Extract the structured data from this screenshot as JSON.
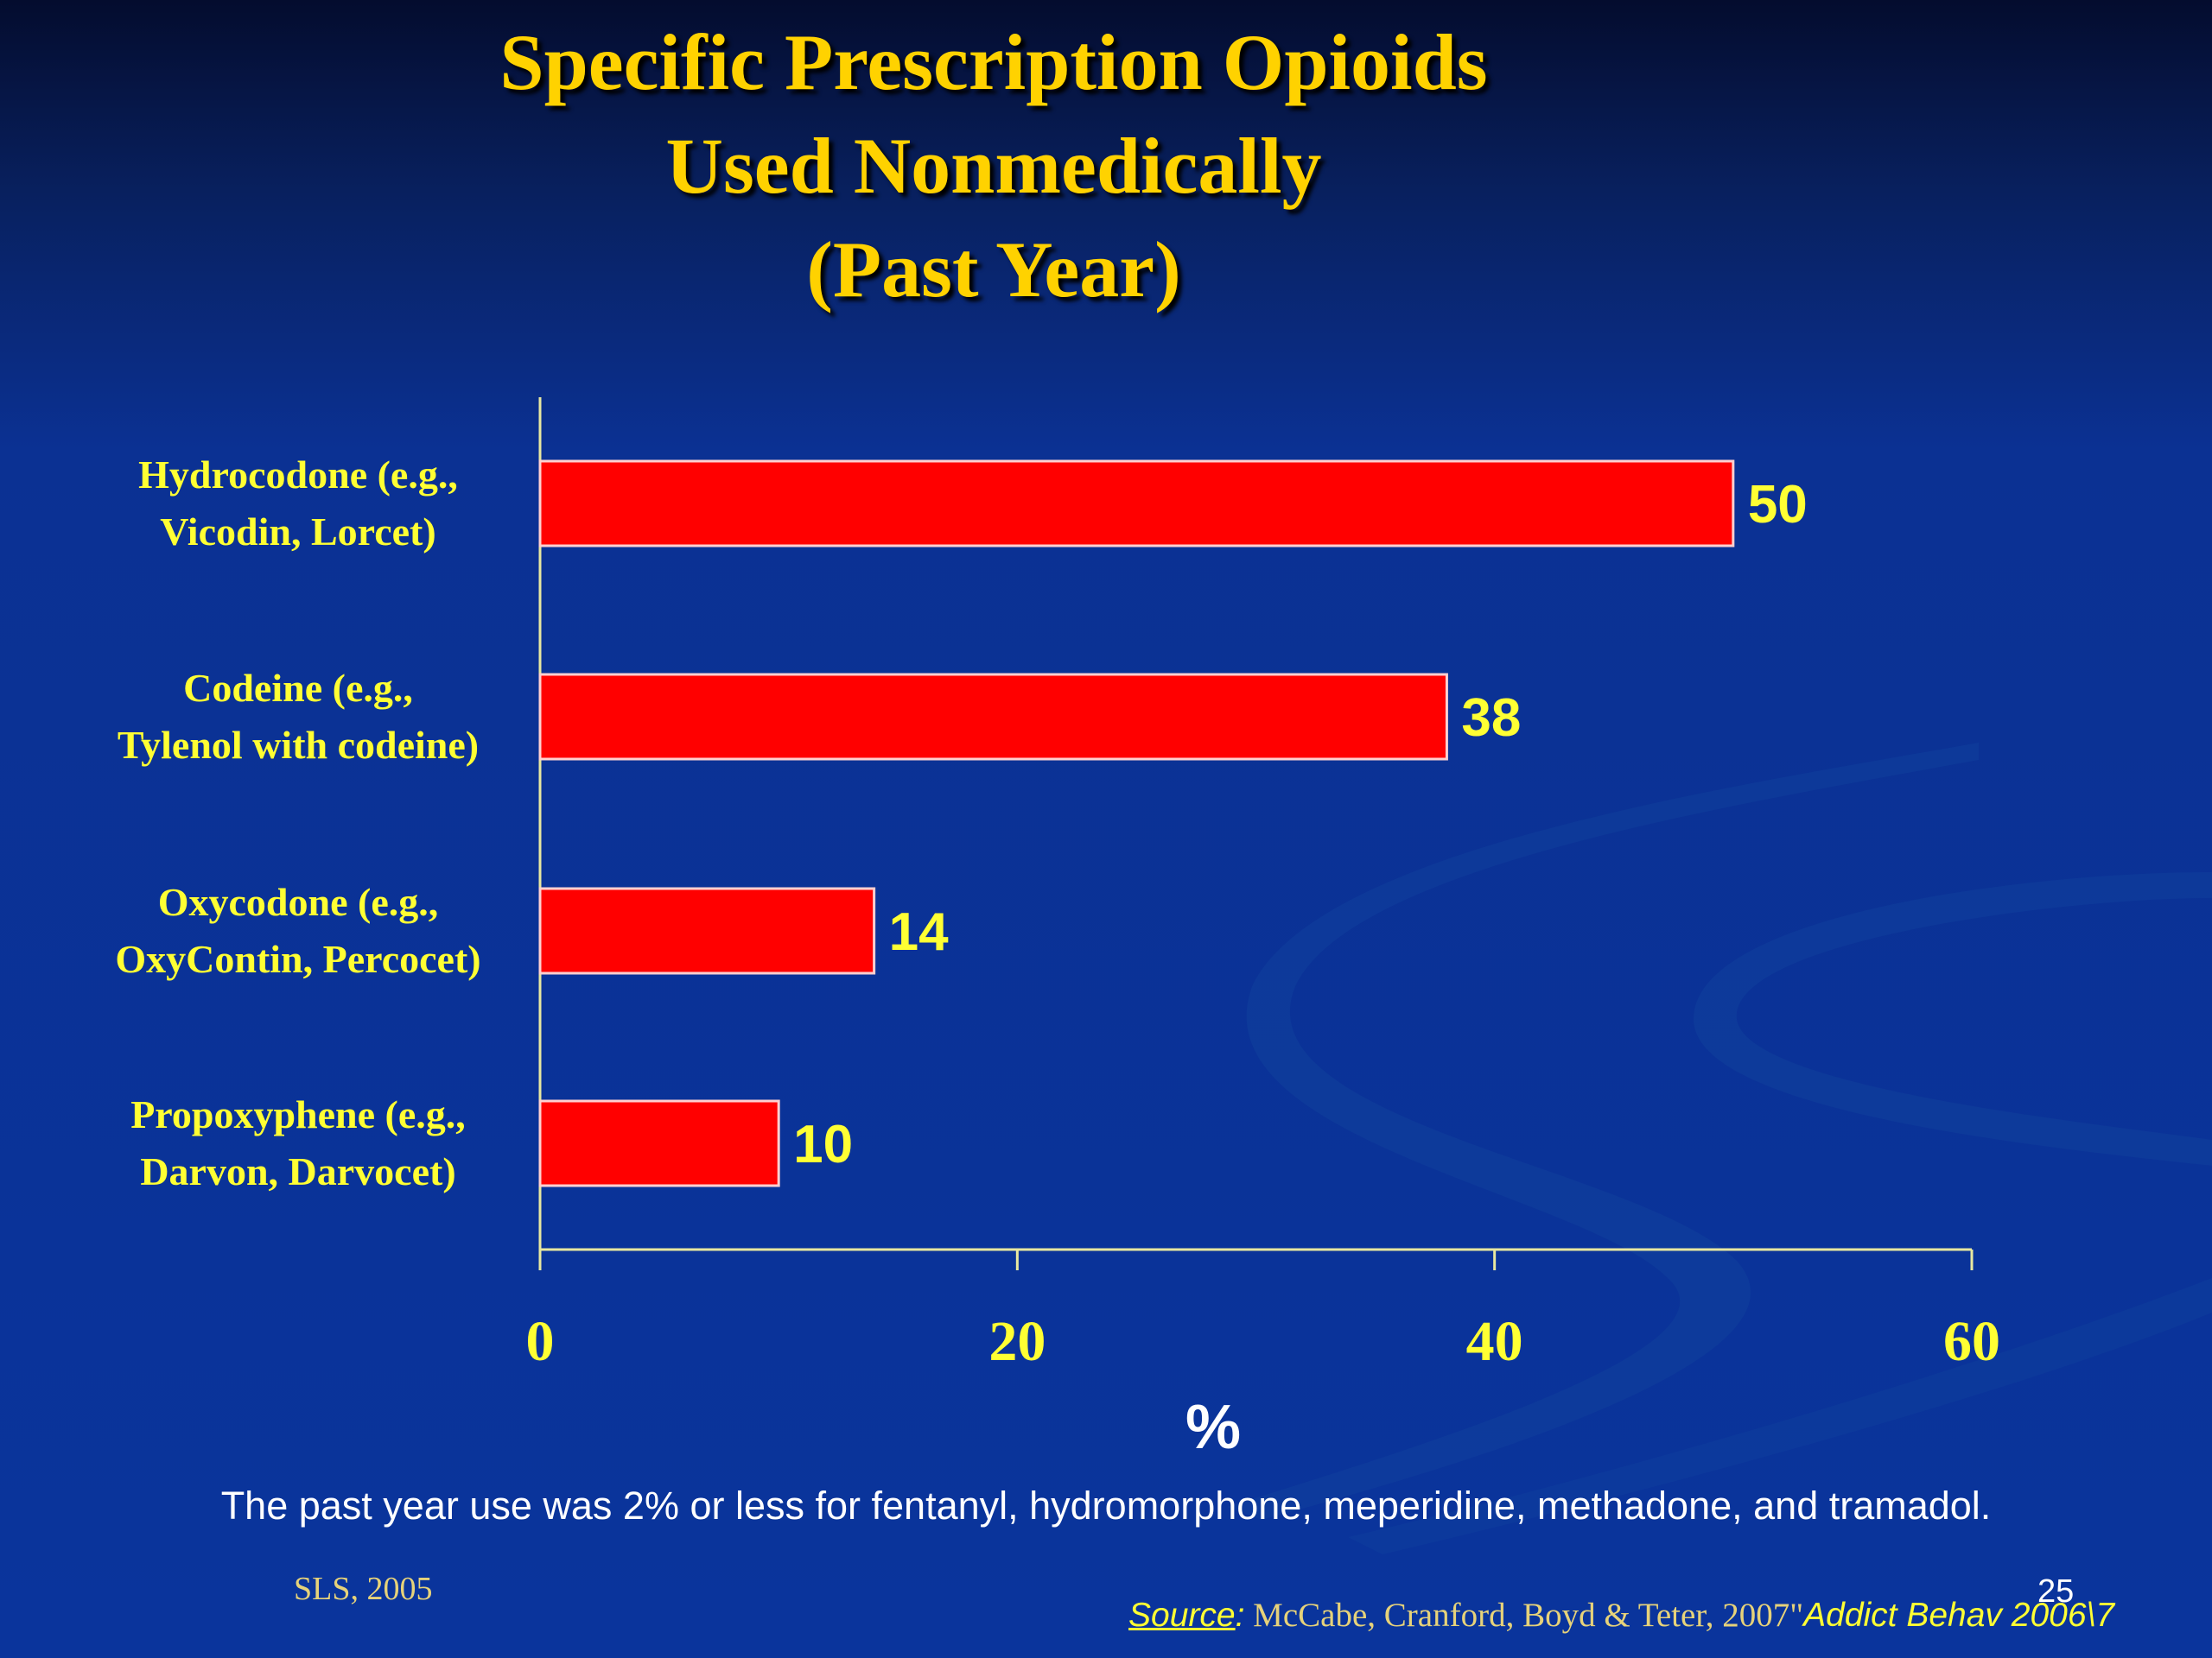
{
  "slide": {
    "title_lines": [
      "Specific Prescription Opioids",
      "Used Nonmedically",
      "(Past Year)"
    ],
    "footnote": "The past year use was 2% or less for fentanyl, hydromorphone, meperidine, methadone, and tramadol.",
    "credit": "SLS, 2005",
    "page_number": "25",
    "source": {
      "label": "Source",
      "colon": ":",
      "authors": "McCabe, Cranford, Boyd & Teter, 2007\"",
      "journal": "Addict Behav 2006\\7"
    }
  },
  "colors": {
    "bar_fill": "#ff0000",
    "bar_border": "#ffd0d0",
    "label_text": "#ffff33",
    "title_text": "#ffd200",
    "axis_line": "#e8e8a0"
  },
  "chart_data": {
    "type": "bar",
    "orientation": "horizontal",
    "title": "Specific Prescription Opioids Used Nonmedically (Past Year)",
    "categories": [
      {
        "lines": [
          "Hydrocodone (e.g.,",
          "Vicodin, Lorcet)"
        ]
      },
      {
        "lines": [
          "Codeine (e.g.,",
          "Tylenol with codeine)"
        ]
      },
      {
        "lines": [
          "Oxycodone (e.g.,",
          "OxyContin, Percocet)"
        ]
      },
      {
        "lines": [
          "Propoxyphene (e.g.,",
          "Darvon, Darvocet)"
        ]
      }
    ],
    "values": [
      50,
      38,
      14,
      10
    ],
    "data_labels": [
      "50",
      "38",
      "14",
      "10"
    ],
    "xlabel": "%",
    "xlim": [
      0,
      60
    ],
    "xticks": [
      "0",
      "20",
      "40",
      "60"
    ],
    "grid": false,
    "legend": "none"
  }
}
